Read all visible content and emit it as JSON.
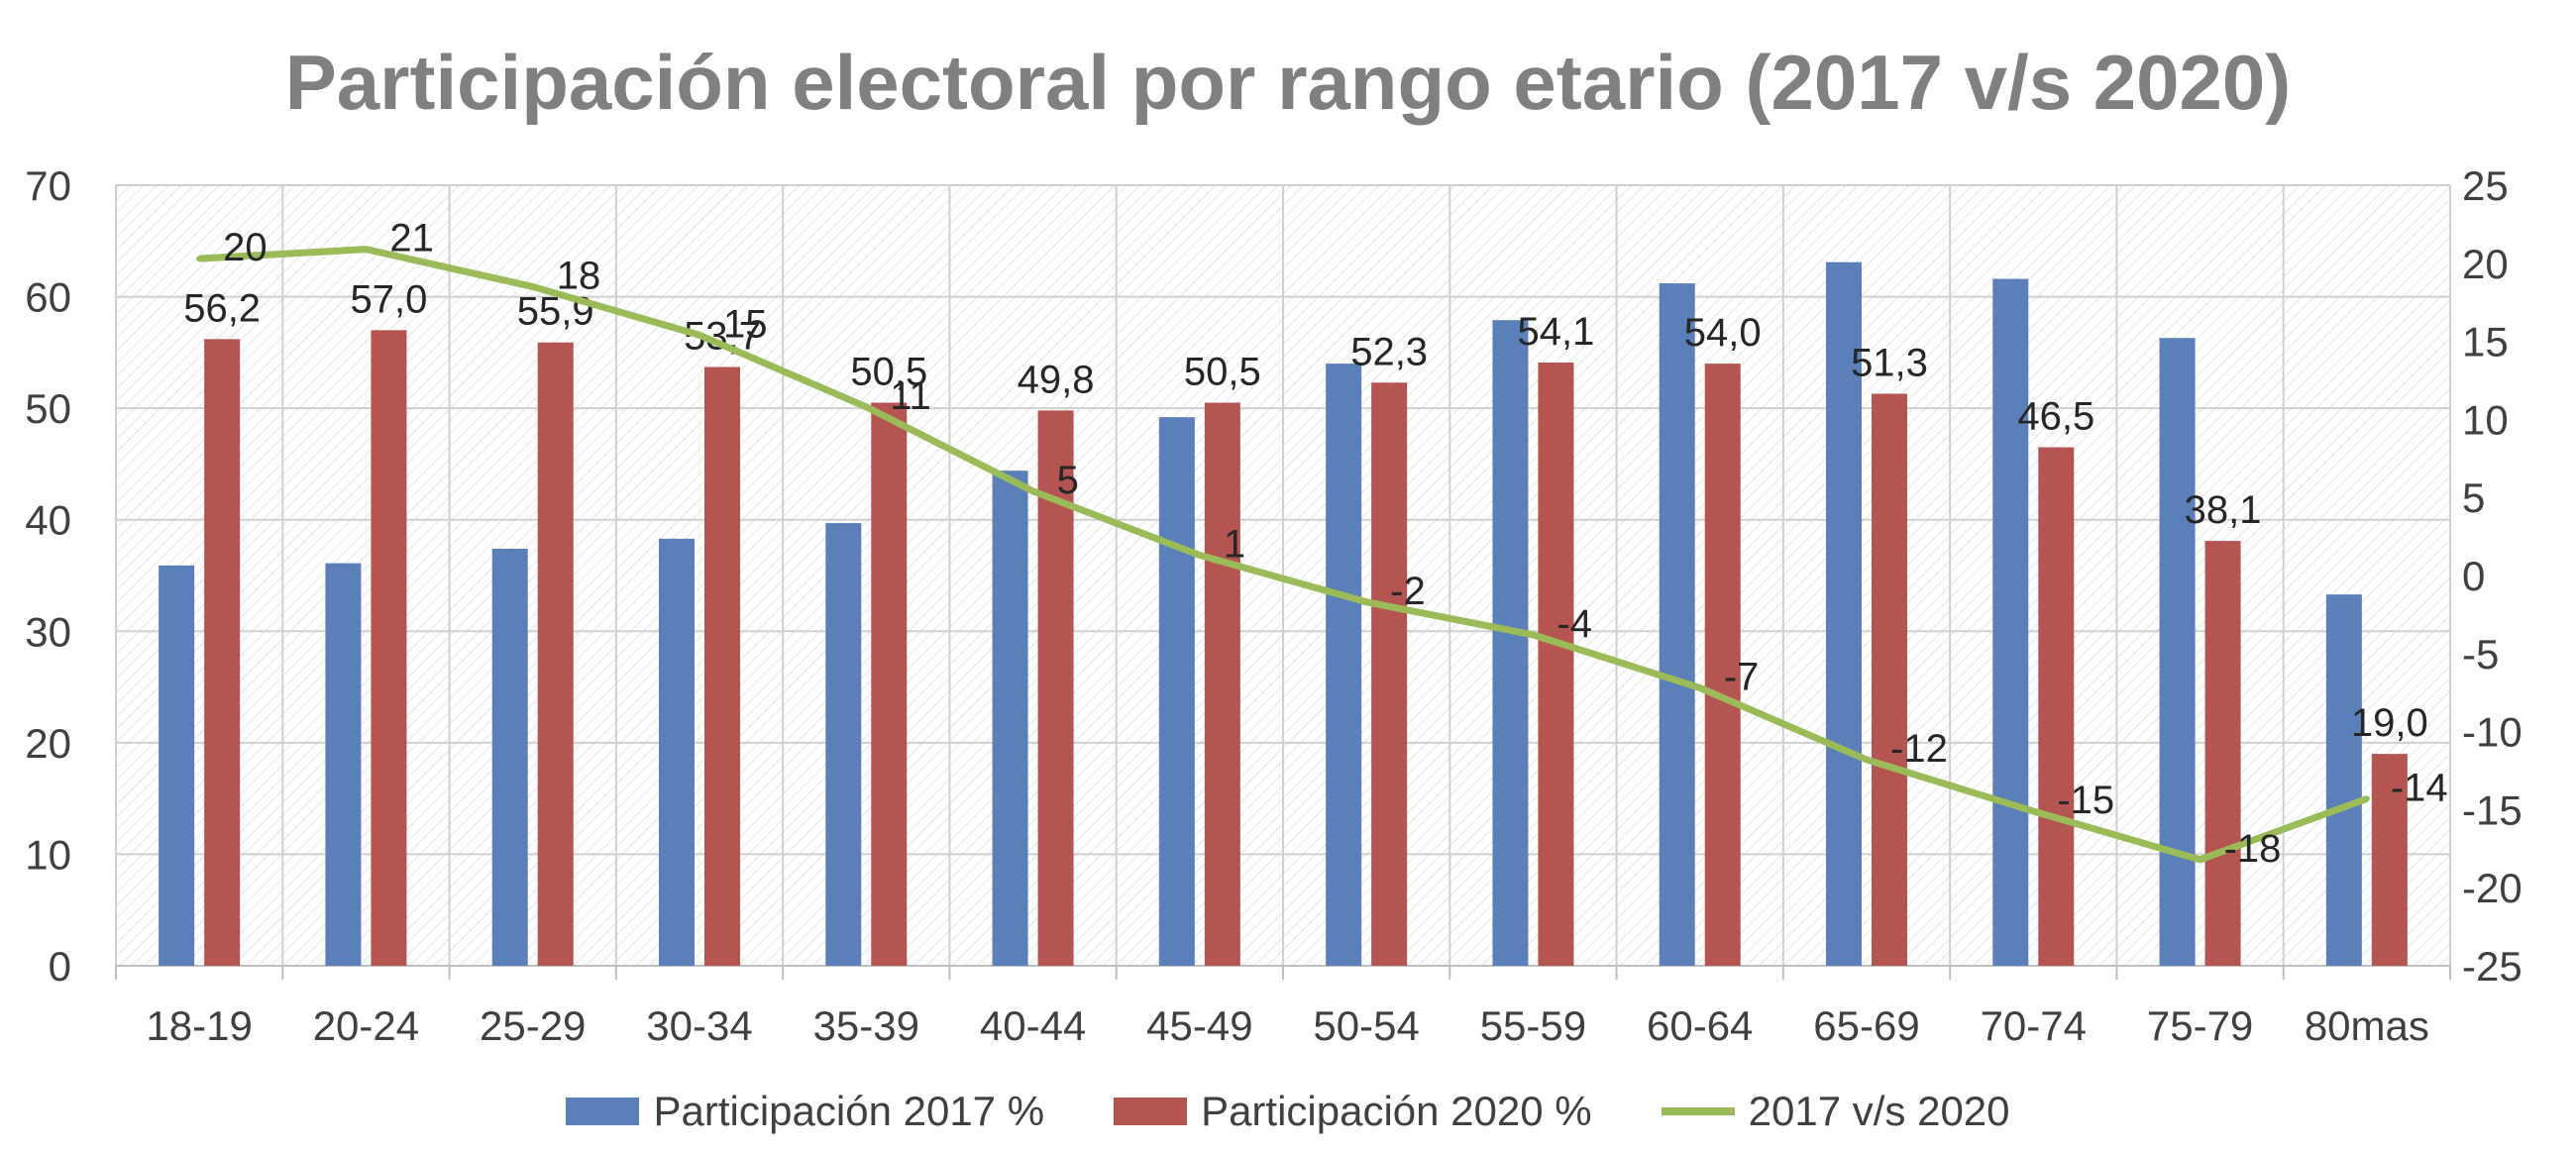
{
  "chart_data": {
    "type": "bar",
    "title": "Participación electoral por rango etario (2017 v/s 2020)",
    "categories": [
      "18-19",
      "20-24",
      "25-29",
      "30-34",
      "35-39",
      "40-44",
      "45-49",
      "50-54",
      "55-59",
      "60-64",
      "65-69",
      "70-74",
      "75-79",
      "80mas"
    ],
    "series": [
      {
        "name": "Participación 2017 %",
        "type": "bar",
        "axis": "left",
        "color": "#5B80B9",
        "values": [
          35.9,
          36.1,
          37.4,
          38.3,
          39.7,
          44.4,
          49.2,
          54.0,
          57.9,
          61.2,
          63.1,
          61.6,
          56.3,
          33.3
        ]
      },
      {
        "name": "Participación 2020 %",
        "type": "bar",
        "axis": "left",
        "color": "#B55552",
        "values": [
          56.2,
          57.0,
          55.9,
          53.7,
          50.5,
          49.8,
          50.5,
          52.3,
          54.1,
          54.0,
          51.3,
          46.5,
          38.1,
          19.0
        ],
        "labels": [
          "56,2",
          "57,0",
          "55,9",
          "53,7",
          "50,5",
          "49,8",
          "50,5",
          "52,3",
          "54,1",
          "54,0",
          "51,3",
          "46,5",
          "38,1",
          "19,0"
        ]
      },
      {
        "name": "2017 v/s 2020",
        "type": "line",
        "axis": "right",
        "color": "#9BBB59",
        "values": [
          20.3,
          20.9,
          18.5,
          15.4,
          10.8,
          5.4,
          1.3,
          -1.7,
          -3.8,
          -7.2,
          -11.8,
          -15.1,
          -18.2,
          -14.3
        ],
        "labels": [
          "20",
          "21",
          "18",
          "15",
          "11",
          "5",
          "1",
          "-2",
          "-4",
          "-7",
          "-12",
          "-15",
          "-18",
          "-14"
        ]
      }
    ],
    "y_left": {
      "min": 0,
      "max": 70,
      "step": 10,
      "ticks": [
        "0",
        "10",
        "20",
        "30",
        "40",
        "50",
        "60",
        "70"
      ]
    },
    "y_right": {
      "min": -25,
      "max": 25,
      "step": 5,
      "ticks": [
        "-25",
        "-20",
        "-15",
        "-10",
        "-5",
        "0",
        "5",
        "10",
        "15",
        "20",
        "25"
      ]
    },
    "grid": true,
    "legend": "bottom"
  }
}
